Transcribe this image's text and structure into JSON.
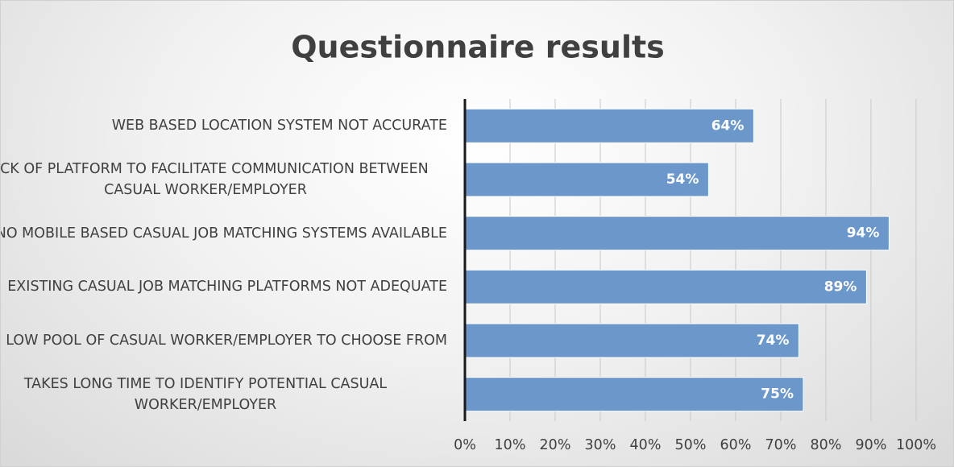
{
  "chart_data": {
    "type": "bar",
    "orientation": "horizontal",
    "title": "Questionnaire results",
    "categories": [
      "WEB BASED LOCATION SYSTEM NOT ACCURATE",
      "LACK OF PLATFORM TO FACILITATE COMMUNICATION BETWEEN CASUAL WORKER/EMPLOYER",
      "NO MOBILE BASED CASUAL JOB MATCHING SYSTEMS AVAILABLE",
      "EXISTING CASUAL JOB MATCHING PLATFORMS NOT ADEQUATE",
      "LOW POOL OF CASUAL WORKER/EMPLOYER TO CHOOSE FROM",
      "TAKES LONG TIME TO IDENTIFY POTENTIAL CASUAL WORKER/EMPLOYER"
    ],
    "values": [
      64,
      54,
      94,
      89,
      74,
      75
    ],
    "value_labels": [
      "64%",
      "54%",
      "94%",
      "89%",
      "74%",
      "75%"
    ],
    "color": "#6b97cb",
    "xlim": [
      0,
      100
    ],
    "xticks": [
      {
        "value": 0,
        "label": "0%"
      },
      {
        "value": 10,
        "label": "10%"
      },
      {
        "value": 20,
        "label": "20%"
      },
      {
        "value": 30,
        "label": "30%"
      },
      {
        "value": 40,
        "label": "40%"
      },
      {
        "value": 50,
        "label": "50%"
      },
      {
        "value": 60,
        "label": "60%"
      },
      {
        "value": 70,
        "label": "70%"
      },
      {
        "value": 80,
        "label": "80%"
      },
      {
        "value": 90,
        "label": "90%"
      },
      {
        "value": 100,
        "label": "100%"
      }
    ],
    "grid": true
  }
}
